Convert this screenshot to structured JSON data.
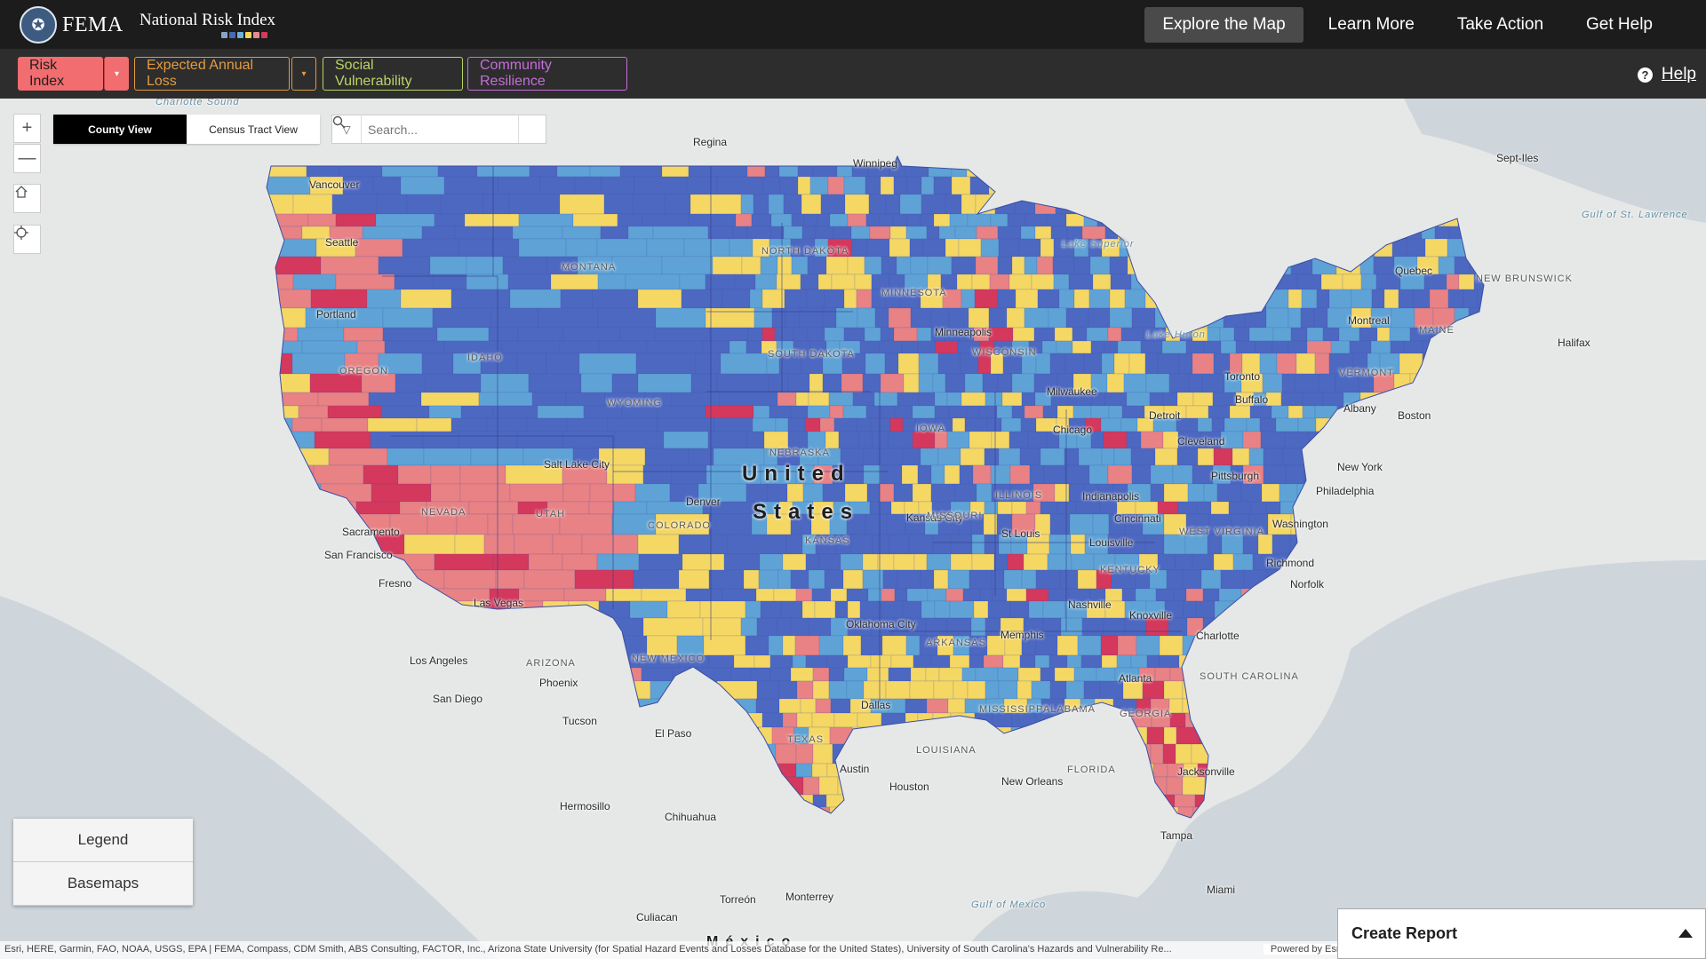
{
  "header": {
    "agency": "FEMA",
    "product": "National Risk Index",
    "swatch_colors": [
      "#8aa3c9",
      "#4a69b0",
      "#6fb2d7",
      "#f4d55b",
      "#e88a8d",
      "#d23b5c"
    ],
    "nav": [
      {
        "label": "Explore the Map",
        "active": true
      },
      {
        "label": "Learn More",
        "active": false
      },
      {
        "label": "Take Action",
        "active": false
      },
      {
        "label": "Get Help",
        "active": false
      }
    ]
  },
  "tabs": {
    "risk_index": "Risk Index",
    "expected_annual_loss": "Expected Annual Loss",
    "social_vulnerability": "Social Vulnerability",
    "community_resilience": "Community Resilience",
    "dropdown_glyph": "▾",
    "help": "Help"
  },
  "map_controls": {
    "zoom_in": "+",
    "zoom_out": "—",
    "county_view": "County View",
    "tract_view": "Census Tract View",
    "search_placeholder": "Search..."
  },
  "map": {
    "country": [
      "United",
      "States"
    ],
    "country_south": "México",
    "class_colors": {
      "very_low": "#4d68c1",
      "relatively_low": "#5fa3d6",
      "relatively_moderate": "#f5d764",
      "relatively_high": "#e88285",
      "very_high": "#d4385c"
    },
    "cities": [
      "Regina",
      "Winnipeg",
      "Vancouver",
      "Seattle",
      "Portland",
      "Minneapolis",
      "Milwaukee",
      "Chicago",
      "Detroit",
      "Toronto",
      "Buffalo",
      "Cleveland",
      "Pittsburgh",
      "Albany",
      "Boston",
      "Montreal",
      "Quebec",
      "Halifax",
      "New York",
      "Philadelphia",
      "Washington",
      "Richmond",
      "Norfolk",
      "Indianapolis",
      "Cincinnati",
      "Louisville",
      "Kansas City",
      "St Louis",
      "Salt Lake City",
      "Denver",
      "Sacramento",
      "San Francisco",
      "Fresno",
      "Las Vegas",
      "Los Angeles",
      "San Diego",
      "Phoenix",
      "Tucson",
      "El Paso",
      "Oklahoma City",
      "Dallas",
      "Austin",
      "Houston",
      "Memphis",
      "Nashville",
      "Knoxville",
      "Charlotte",
      "Atlanta",
      "New Orleans",
      "Jacksonville",
      "Tampa",
      "Miami",
      "Hermosillo",
      "Chihuahua",
      "Monterrey",
      "Torreón",
      "Culiacan",
      "Sept-Iles"
    ],
    "states": [
      "MONTANA",
      "NORTH DAKOTA",
      "MINNESOTA",
      "SOUTH DAKOTA",
      "WISCONSIN",
      "IDAHO",
      "OREGON",
      "WYOMING",
      "NEBRASKA",
      "IOWA",
      "ILLINOIS",
      "NEVADA",
      "UTAH",
      "COLORADO",
      "KANSAS",
      "MISSOURI",
      "KENTUCKY",
      "WEST VIRGINIA",
      "ARIZONA",
      "NEW MEXICO",
      "TEXAS",
      "ARKANSAS",
      "LOUISIANA",
      "MISSISSIPPI",
      "ALABAMA",
      "GEORGIA",
      "FLORIDA",
      "SOUTH CAROLINA",
      "VERMONT",
      "MAINE",
      "NEW BRUNSWICK"
    ],
    "waters": [
      "Lake Superior",
      "Lake Huron",
      "Gulf of St. Lawrence",
      "Gulf of Mexico",
      "Charlotte Sound"
    ]
  },
  "panels": {
    "legend": "Legend",
    "basemaps": "Basemaps"
  },
  "attribution": "Esri, HERE, Garmin, FAO, NOAA, USGS, EPA | FEMA, Compass, CDM Smith, ABS Consulting, FACTOR, Inc., Arizona State University (for Spatial Hazard Events and Losses Database for the United States), University of South Carolina's Hazards and Vulnerability Re...",
  "powered_by": "Powered by Esri",
  "create_report": "Create Report"
}
